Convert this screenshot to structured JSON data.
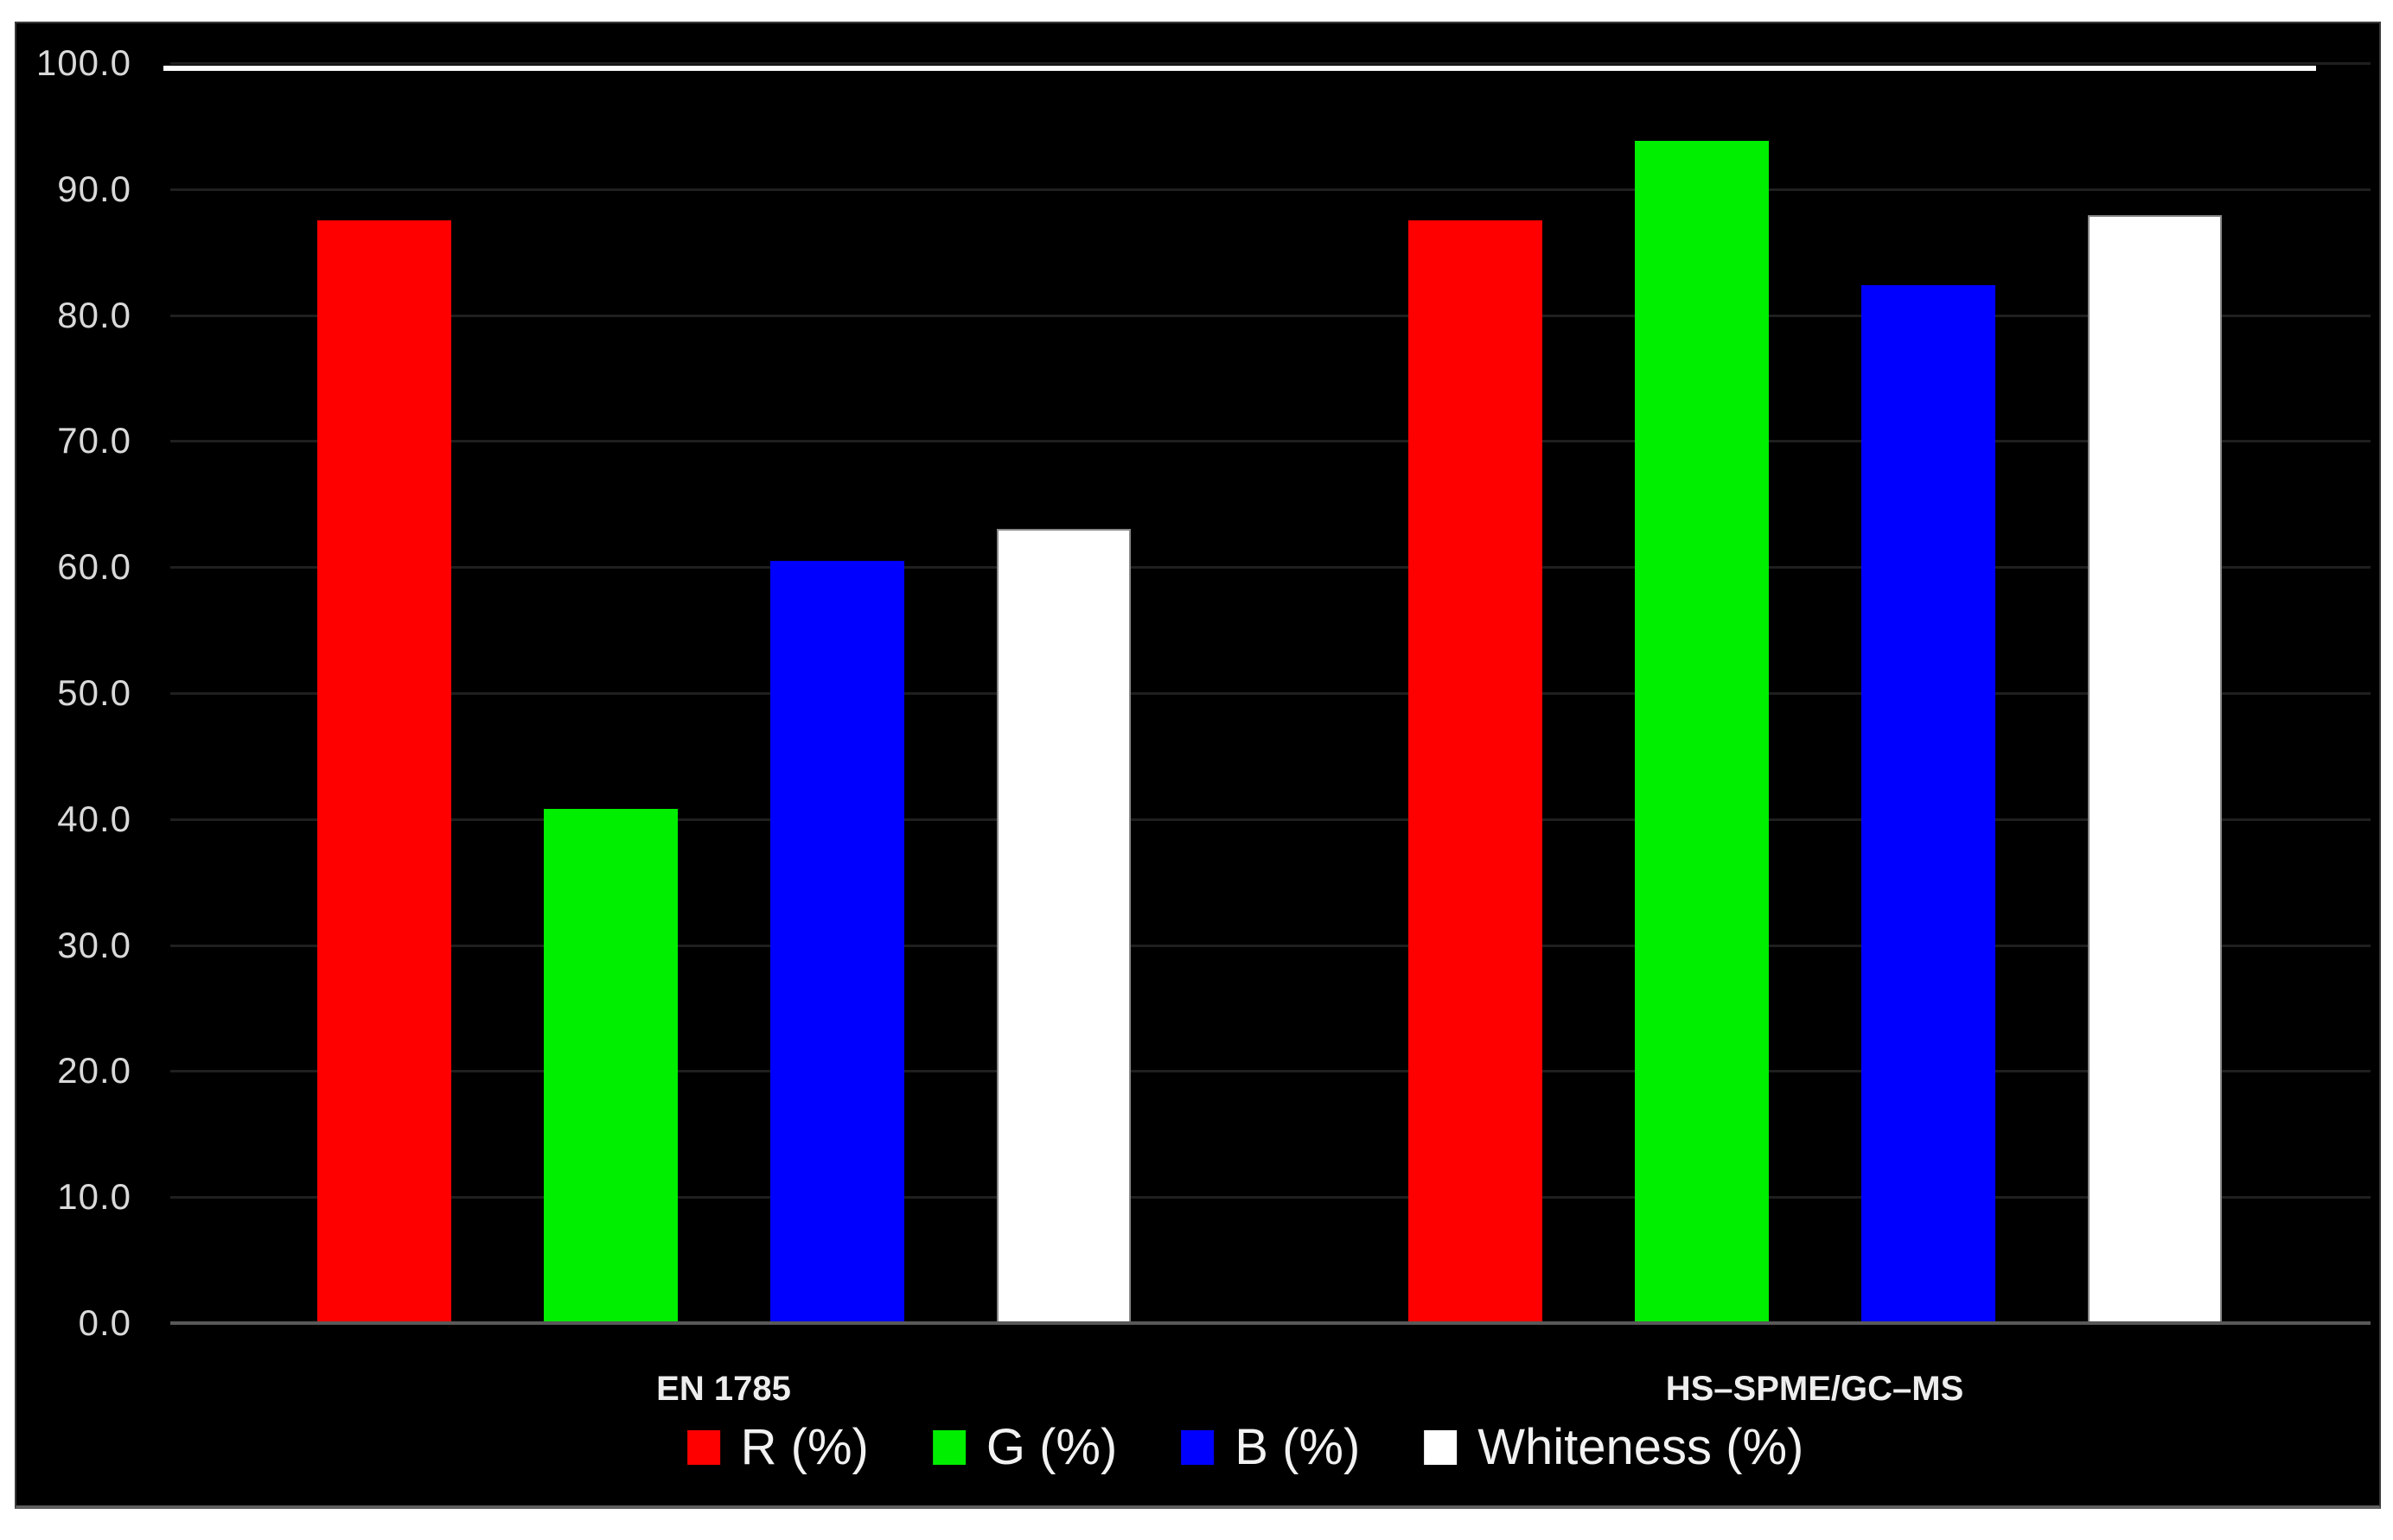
{
  "chart_data": {
    "type": "bar",
    "title": "",
    "categories": [
      "EN 1785",
      "HS–SPME/GC–MS"
    ],
    "series": [
      {
        "name": "R (%)",
        "color": "#ff0000",
        "values": [
          87.5,
          87.5
        ]
      },
      {
        "name": "G (%)",
        "color": "#00ee00",
        "values": [
          40.8,
          93.8
        ]
      },
      {
        "name": "B (%)",
        "color": "#0000ff",
        "values": [
          60.5,
          82.4
        ]
      },
      {
        "name": "Whiteness (%)",
        "color": "#ffffff",
        "values": [
          63.0,
          87.9
        ]
      }
    ],
    "ylabel": "",
    "xlabel": "",
    "ylim": [
      0,
      100
    ],
    "ytick_step": 10,
    "ytick_labels": [
      "0.0",
      "10.0",
      "20.0",
      "30.0",
      "40.0",
      "50.0",
      "60.0",
      "70.0",
      "80.0",
      "90.0",
      "100.0"
    ],
    "grid": true,
    "legend_position": "bottom",
    "reference_line": {
      "value": 100.0,
      "color": "#ffffff"
    }
  },
  "style": {
    "page_background": "#ffffff",
    "plot_background": "#000000",
    "gridline_color": "#1f1f1f",
    "axis_line_color": "#595959",
    "tick_label_color": "#d9d9d9",
    "category_label_color": "#ededed",
    "legend_text_color": "#f2f2f2",
    "white_bar_border_color": "#8a8a8a"
  }
}
